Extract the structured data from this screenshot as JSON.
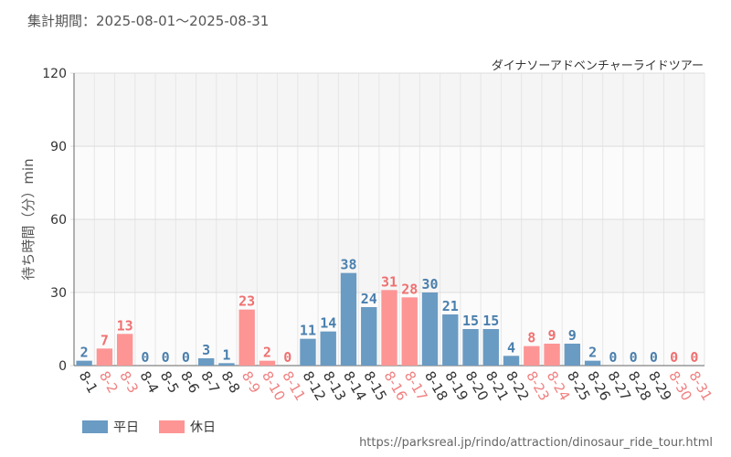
{
  "period_text": "集計期間：2025-08-01～2025-08-31",
  "source_url": "https://parksreal.jp/rindo/attraction/dinosaur_ride_tour.html",
  "colors": {
    "weekday": "#6a9bc3",
    "holiday": "#fd9595",
    "weekday_label": "#4a7fad",
    "holiday_label": "#ef7070",
    "weekday_tick": "#333333",
    "holiday_tick": "#f08080"
  },
  "chart_data": {
    "type": "bar",
    "title": "ダイナソーアドベンチャーライドツアー",
    "ylabel": "待ち時間（分）min",
    "ylim": [
      0,
      120
    ],
    "yticks": [
      "0",
      "30",
      "60",
      "90",
      "120"
    ],
    "grid": true,
    "legend": [
      {
        "name": "平日",
        "key": "weekday"
      },
      {
        "name": "休日",
        "key": "holiday"
      }
    ],
    "legend_position": "bottom-left",
    "categories": [
      "8-1",
      "8-2",
      "8-3",
      "8-4",
      "8-5",
      "8-6",
      "8-7",
      "8-8",
      "8-9",
      "8-10",
      "8-11",
      "8-12",
      "8-13",
      "8-14",
      "8-15",
      "8-16",
      "8-17",
      "8-18",
      "8-19",
      "8-20",
      "8-21",
      "8-22",
      "8-23",
      "8-24",
      "8-25",
      "8-26",
      "8-27",
      "8-28",
      "8-29",
      "8-30",
      "8-31"
    ],
    "values": [
      2,
      7,
      13,
      0,
      0,
      0,
      3,
      1,
      23,
      2,
      0,
      11,
      14,
      38,
      24,
      31,
      28,
      30,
      21,
      15,
      15,
      4,
      8,
      9,
      9,
      2,
      0,
      0,
      0,
      0,
      0
    ],
    "day_type": [
      "weekday",
      "holiday",
      "holiday",
      "weekday",
      "weekday",
      "weekday",
      "weekday",
      "weekday",
      "holiday",
      "holiday",
      "holiday",
      "weekday",
      "weekday",
      "weekday",
      "weekday",
      "holiday",
      "holiday",
      "weekday",
      "weekday",
      "weekday",
      "weekday",
      "weekday",
      "holiday",
      "holiday",
      "weekday",
      "weekday",
      "weekday",
      "weekday",
      "weekday",
      "holiday",
      "holiday"
    ]
  }
}
